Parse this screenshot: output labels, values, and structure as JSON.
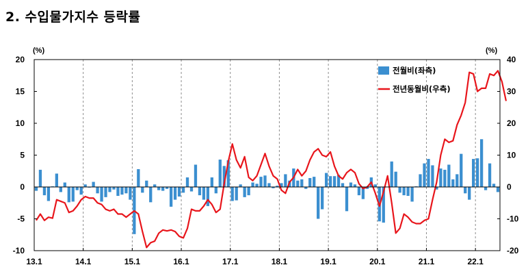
{
  "title": "2. 수입물가지수 등락률",
  "chart_data": {
    "type": "bar+line",
    "title": "2. 수입물가지수 등락률",
    "left_unit": "(%)",
    "right_unit": "(%)",
    "left_ylim": [
      -10,
      20
    ],
    "right_ylim": [
      -20,
      40
    ],
    "left_yticks": [
      -10,
      -5,
      0,
      5,
      10,
      15,
      20
    ],
    "right_yticks": [
      -20,
      -10,
      0,
      10,
      20,
      30,
      40
    ],
    "xtick_labels": [
      "13.1",
      "14.1",
      "15.1",
      "16.1",
      "17.1",
      "18.1",
      "19.1",
      "20.1",
      "21.1",
      "22.1"
    ],
    "grid": "vertical dashed at year starts",
    "legend_position": "top-right",
    "colors": {
      "bar": "#3b8fd0",
      "line": "#e8151b"
    },
    "x_start": "2013-01",
    "x_end": "2022-09",
    "series": [
      {
        "name": "전월비(좌측)",
        "type": "bar",
        "axis": "left",
        "values": [
          -0.6,
          2.7,
          -1.3,
          -2.2,
          0.1,
          2.1,
          -0.8,
          0.7,
          -2.4,
          -2.3,
          -0.5,
          -1.2,
          0.4,
          -0.1,
          0.8,
          -1.0,
          -2.3,
          -1.6,
          -0.8,
          -0.4,
          -1.4,
          -1.2,
          -1.0,
          -2.0,
          -7.4,
          2.8,
          -0.9,
          1.0,
          -2.4,
          0.4,
          -0.5,
          -0.6,
          -0.3,
          -3.1,
          -2.0,
          -1.5,
          -0.9,
          1.5,
          -0.7,
          3.5,
          -1.3,
          -2.0,
          -3.0,
          1.5,
          -1.0,
          4.3,
          3.3,
          4.2,
          -2.2,
          -2.1,
          0.4,
          -1.6,
          -1.3,
          0.7,
          0.5,
          1.6,
          1.8,
          0.6,
          -0.2,
          0.2,
          0.6,
          2.0,
          1.0,
          2.9,
          1.0,
          1.2,
          -0.3,
          1.4,
          1.6,
          -5.0,
          -3.5,
          2.2,
          1.7,
          1.7,
          1.9,
          0.6,
          -3.8,
          0.7,
          0.4,
          -1.3,
          -1.9,
          -0.3,
          1.5,
          0.4,
          -5.4,
          -5.6,
          0.0,
          4.0,
          2.4,
          -0.9,
          -1.3,
          -1.4,
          -2.3,
          0.1,
          2.0,
          3.7,
          4.4,
          3.4,
          -0.4,
          2.9,
          2.7,
          3.5,
          1.2,
          2.0,
          5.2,
          -1.0,
          -2.0,
          4.4,
          4.5,
          7.5,
          -0.5,
          3.7,
          0.5,
          -0.8
        ]
      },
      {
        "name": "전년동월비(우측)",
        "type": "line",
        "axis": "right",
        "values": [
          -10.5,
          -8.5,
          -10.5,
          -9.5,
          -9.8,
          -4.0,
          -4.5,
          -5.0,
          -8.0,
          -7.5,
          -6.0,
          -4.0,
          -3.0,
          -3.5,
          -3.5,
          -5.0,
          -5.5,
          -7.0,
          -7.5,
          -7.0,
          -8.5,
          -8.5,
          -9.5,
          -8.5,
          -7.5,
          -8.5,
          -14.0,
          -19.0,
          -17.5,
          -17.0,
          -14.5,
          -13.5,
          -13.8,
          -13.5,
          -14.0,
          -15.5,
          -16.0,
          -13.0,
          -7.0,
          -7.5,
          -7.5,
          -6.0,
          -4.0,
          -5.5,
          -8.0,
          -7.0,
          1.0,
          8.0,
          13.5,
          8.5,
          6.0,
          9.5,
          3.0,
          2.0,
          3.5,
          7.0,
          10.5,
          6.5,
          3.5,
          2.5,
          -1.0,
          -2.0,
          1.5,
          3.0,
          5.5,
          3.5,
          5.0,
          8.5,
          11.0,
          12.0,
          10.0,
          9.5,
          11.0,
          6.5,
          3.5,
          2.5,
          4.5,
          5.5,
          4.5,
          1.0,
          -0.5,
          0.0,
          1.5,
          -2.0,
          -6.0,
          -1.5,
          3.5,
          -5.0,
          -14.5,
          -13.0,
          -8.5,
          -9.5,
          -11.0,
          -11.5,
          -11.5,
          -10.5,
          -10.0,
          -4.0,
          1.5,
          10.0,
          15.0,
          14.0,
          14.5,
          19.5,
          22.5,
          26.5,
          36.0,
          35.5,
          30.0,
          31.0,
          31.0,
          35.5,
          35.0,
          36.5,
          33.0,
          27.0
        ]
      }
    ]
  }
}
